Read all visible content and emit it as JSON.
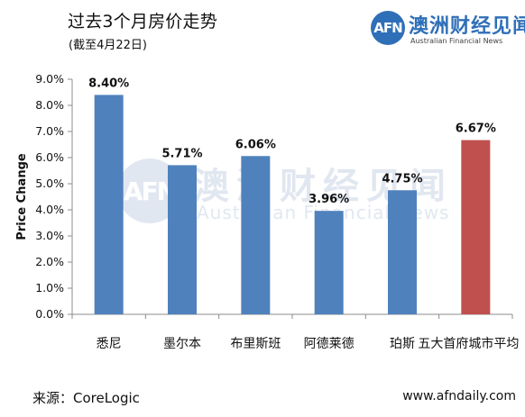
{
  "title": "过去3个月房价走势",
  "subtitle": "(截至4月22日)",
  "logo": {
    "badge": "AFN",
    "name_cn": "澳洲财经见闻",
    "name_en": "Australian Financial News"
  },
  "watermark": {
    "badge": "AFN",
    "name_cn": "澳洲财经见闻",
    "name_en": "Australian Financial News"
  },
  "source": "来源：CoreLogic",
  "website": "www.afndaily.com",
  "colors": {
    "bar_default": "#4F81BD",
    "bar_highlight": "#C0504D",
    "axis": "#8C8C8C"
  },
  "chart_data": {
    "type": "bar",
    "title": "过去3个月房价走势",
    "subtitle": "(截至4月22日)",
    "xlabel": "",
    "ylabel": "Price Change",
    "ylim": [
      0,
      9
    ],
    "y_ticks": [
      0,
      1,
      2,
      3,
      4,
      5,
      6,
      7,
      8,
      9
    ],
    "y_tick_labels": [
      "0.0%",
      "1.0%",
      "2.0%",
      "3.0%",
      "4.0%",
      "5.0%",
      "6.0%",
      "7.0%",
      "8.0%",
      "9.0%"
    ],
    "categories": [
      "悉尼",
      "墨尔本",
      "布里斯班",
      "阿德莱德",
      "珀斯",
      "五大首府城市平均"
    ],
    "values": [
      8.4,
      5.71,
      6.06,
      3.96,
      4.75,
      6.67
    ],
    "data_labels": [
      "8.40%",
      "5.71%",
      "6.06%",
      "3.96%",
      "4.75%",
      "6.67%"
    ],
    "highlight_category": "五大首府城市平均",
    "grid": false,
    "legend": "none"
  }
}
